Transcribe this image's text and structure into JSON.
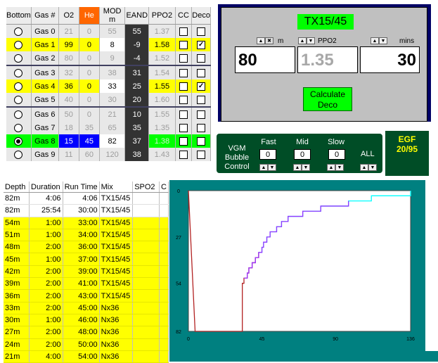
{
  "gas_table": {
    "headers": [
      "Bottom",
      "Gas #",
      "O2",
      "He",
      "MOD m",
      "EAND",
      "PPO2",
      "CC",
      "Deco"
    ],
    "rows": [
      {
        "name": "Gas 0",
        "o2": "21",
        "he": "0",
        "mod": "55",
        "eand": "55",
        "ppo2": "1.37",
        "bottom": false,
        "cc": false,
        "deco": false,
        "state": "dim"
      },
      {
        "name": "Gas 1",
        "o2": "99",
        "he": "0",
        "mod": "8",
        "eand": "-9",
        "ppo2": "1.58",
        "bottom": false,
        "cc": false,
        "deco": true,
        "state": "active"
      },
      {
        "name": "Gas 2",
        "o2": "80",
        "he": "0",
        "mod": "9",
        "eand": "-4",
        "ppo2": "1.52",
        "bottom": false,
        "cc": false,
        "deco": false,
        "state": "dim"
      },
      {
        "name": "Gas 3",
        "o2": "32",
        "he": "0",
        "mod": "38",
        "eand": "31",
        "ppo2": "1.54",
        "bottom": false,
        "cc": false,
        "deco": false,
        "state": "dim"
      },
      {
        "name": "Gas 4",
        "o2": "36",
        "he": "0",
        "mod": "33",
        "eand": "25",
        "ppo2": "1.55",
        "bottom": false,
        "cc": false,
        "deco": true,
        "state": "active"
      },
      {
        "name": "Gas 5",
        "o2": "40",
        "he": "0",
        "mod": "30",
        "eand": "20",
        "ppo2": "1.60",
        "bottom": false,
        "cc": false,
        "deco": false,
        "state": "dim"
      },
      {
        "name": "Gas 6",
        "o2": "50",
        "he": "0",
        "mod": "21",
        "eand": "10",
        "ppo2": "1.55",
        "bottom": false,
        "cc": false,
        "deco": false,
        "state": "dim"
      },
      {
        "name": "Gas 7",
        "o2": "18",
        "he": "35",
        "mod": "65",
        "eand": "35",
        "ppo2": "1.35",
        "bottom": false,
        "cc": false,
        "deco": false,
        "state": "dim"
      },
      {
        "name": "Gas 8",
        "o2": "15",
        "he": "45",
        "mod": "82",
        "eand": "37",
        "ppo2": "1.38",
        "bottom": true,
        "cc": false,
        "deco": false,
        "state": "selected"
      },
      {
        "name": "Gas 9",
        "o2": "11",
        "he": "60",
        "mod": "120",
        "eand": "38",
        "ppo2": "1.43",
        "bottom": false,
        "cc": false,
        "deco": false,
        "state": "dim"
      }
    ]
  },
  "controls": {
    "mix_name": "TX15/45",
    "depth_unit": "m",
    "ppo2_label": "PPO2",
    "time_unit": "mins",
    "depth_value": "80",
    "ppo2_value": "1.35",
    "time_value": "30",
    "calc_button": "Calculate Deco"
  },
  "vgm": {
    "title_lines": [
      "VGM",
      "Bubble",
      "Control"
    ],
    "fast_label": "Fast",
    "fast_value": "0",
    "mid_label": "Mid",
    "mid_value": "0",
    "slow_label": "Slow",
    "slow_value": "0",
    "all_label": "ALL"
  },
  "egf": {
    "line1": "EGF",
    "line2": "20/95"
  },
  "deco_table": {
    "headers": [
      "Depth",
      "Duration",
      "Run Time",
      "Mix",
      "SPO2",
      "C"
    ],
    "rows": [
      {
        "depth": "82m",
        "duration": "4:06",
        "runtime": "4:06",
        "mix": "TX15/45",
        "highlight": false
      },
      {
        "depth": "82m",
        "duration": "25:54",
        "runtime": "30:00",
        "mix": "TX15/45",
        "highlight": false
      },
      {
        "depth": "54m",
        "duration": "1:00",
        "runtime": "33:00",
        "mix": "TX15/45",
        "highlight": true
      },
      {
        "depth": "51m",
        "duration": "1:00",
        "runtime": "34:00",
        "mix": "TX15/45",
        "highlight": true
      },
      {
        "depth": "48m",
        "duration": "2:00",
        "runtime": "36:00",
        "mix": "TX15/45",
        "highlight": true
      },
      {
        "depth": "45m",
        "duration": "1:00",
        "runtime": "37:00",
        "mix": "TX15/45",
        "highlight": true
      },
      {
        "depth": "42m",
        "duration": "2:00",
        "runtime": "39:00",
        "mix": "TX15/45",
        "highlight": true
      },
      {
        "depth": "39m",
        "duration": "2:00",
        "runtime": "41:00",
        "mix": "TX15/45",
        "highlight": true
      },
      {
        "depth": "36m",
        "duration": "2:00",
        "runtime": "43:00",
        "mix": "TX15/45",
        "highlight": true
      },
      {
        "depth": "33m",
        "duration": "2:00",
        "runtime": "45:00",
        "mix": "Nx36",
        "highlight": true
      },
      {
        "depth": "30m",
        "duration": "1:00",
        "runtime": "46:00",
        "mix": "Nx36",
        "highlight": true
      },
      {
        "depth": "27m",
        "duration": "2:00",
        "runtime": "48:00",
        "mix": "Nx36",
        "highlight": true
      },
      {
        "depth": "24m",
        "duration": "2:00",
        "runtime": "50:00",
        "mix": "Nx36",
        "highlight": true
      },
      {
        "depth": "21m",
        "duration": "4:00",
        "runtime": "54:00",
        "mix": "Nx36",
        "highlight": true
      }
    ]
  },
  "chart_data": {
    "type": "line",
    "title": "",
    "xlabel": "",
    "ylabel": "",
    "xlim": [
      0,
      136
    ],
    "ylim": [
      0,
      82
    ],
    "y_inverted": true,
    "x_ticks": [
      "0",
      "45",
      "90",
      "136"
    ],
    "y_ticks": [
      "0",
      "27",
      "54",
      "82"
    ],
    "grid": false,
    "colors": {
      "descent_tx": "#b22222",
      "deco_tx": "#9933ff",
      "deco_nx": "#00ffff",
      "background": "#008080",
      "plot_area": "#ffffff"
    },
    "series": [
      {
        "points": [
          [
            0,
            0
          ],
          [
            4.1,
            82
          ],
          [
            30,
            82
          ],
          [
            33,
            54
          ],
          [
            34,
            51
          ],
          [
            36,
            48
          ],
          [
            37,
            45
          ],
          [
            39,
            42
          ],
          [
            41,
            39
          ],
          [
            43,
            36
          ]
        ],
        "color": "descent_tx"
      },
      {
        "points": [
          [
            43,
            36
          ],
          [
            45,
            33
          ],
          [
            46,
            30
          ],
          [
            48,
            27
          ],
          [
            50,
            24
          ],
          [
            54,
            21
          ],
          [
            57,
            18
          ],
          [
            61,
            15
          ],
          [
            70,
            12
          ],
          [
            81,
            9
          ],
          [
            98,
            6
          ],
          [
            112,
            3
          ],
          [
            136,
            0
          ]
        ],
        "color": "deco_nx"
      }
    ]
  }
}
